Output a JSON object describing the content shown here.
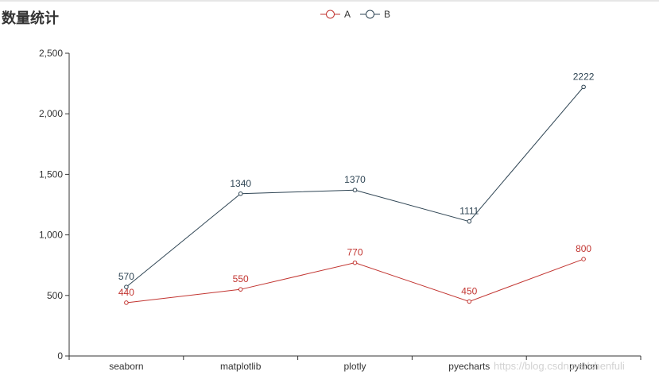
{
  "title": "数量统计",
  "watermark": "https://blog.csdn.net/shenfuli",
  "colors": {
    "A": "#c23531",
    "B": "#2f4554",
    "axis": "#333333"
  },
  "chart_data": {
    "type": "line",
    "title": "数量统计",
    "categories": [
      "seaborn",
      "matplotlib",
      "plotly",
      "pyecharts",
      "python"
    ],
    "series": [
      {
        "name": "A",
        "values": [
          440,
          550,
          770,
          450,
          800
        ]
      },
      {
        "name": "B",
        "values": [
          570,
          1340,
          1370,
          1111,
          2222
        ]
      }
    ],
    "ylim": [
      0,
      2500
    ],
    "yticks": [
      0,
      500,
      1000,
      1500,
      2000,
      2500
    ],
    "ytick_labels": [
      "0",
      "500",
      "1,000",
      "1,500",
      "2,000",
      "2,500"
    ],
    "legend": "top-center",
    "grid": false,
    "data_labels": true
  }
}
